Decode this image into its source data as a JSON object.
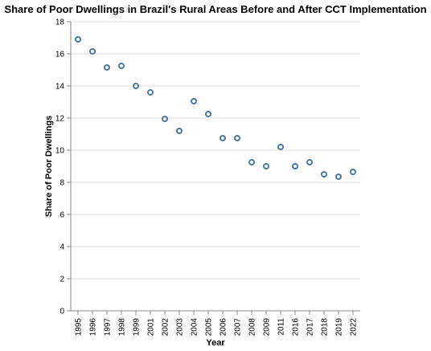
{
  "chart_data": {
    "type": "scatter",
    "title": "Share of Poor Dwellings in Brazil's Rural Areas Before and After CCT Implementation",
    "xlabel": "Year",
    "ylabel": "Share of Poor Dwellings",
    "x_scale": "ordinal",
    "categories": [
      "1995",
      "1996",
      "1997",
      "1998",
      "1999",
      "2001",
      "2002",
      "2003",
      "2004",
      "2005",
      "2006",
      "2007",
      "2008",
      "2009",
      "2011",
      "2016",
      "2017",
      "2018",
      "2019",
      "2022"
    ],
    "values": [
      16.9,
      16.15,
      15.15,
      15.25,
      14.0,
      13.6,
      11.95,
      11.2,
      13.05,
      12.25,
      10.75,
      10.75,
      9.25,
      9.0,
      10.2,
      9.0,
      9.25,
      8.5,
      8.35,
      8.65
    ],
    "ylim": [
      0,
      18
    ],
    "y_ticks": [
      "0",
      "2",
      "4",
      "6",
      "8",
      "10",
      "12",
      "14",
      "16",
      "18"
    ],
    "grid": "horizontal",
    "point_color": "#4c78a8"
  }
}
